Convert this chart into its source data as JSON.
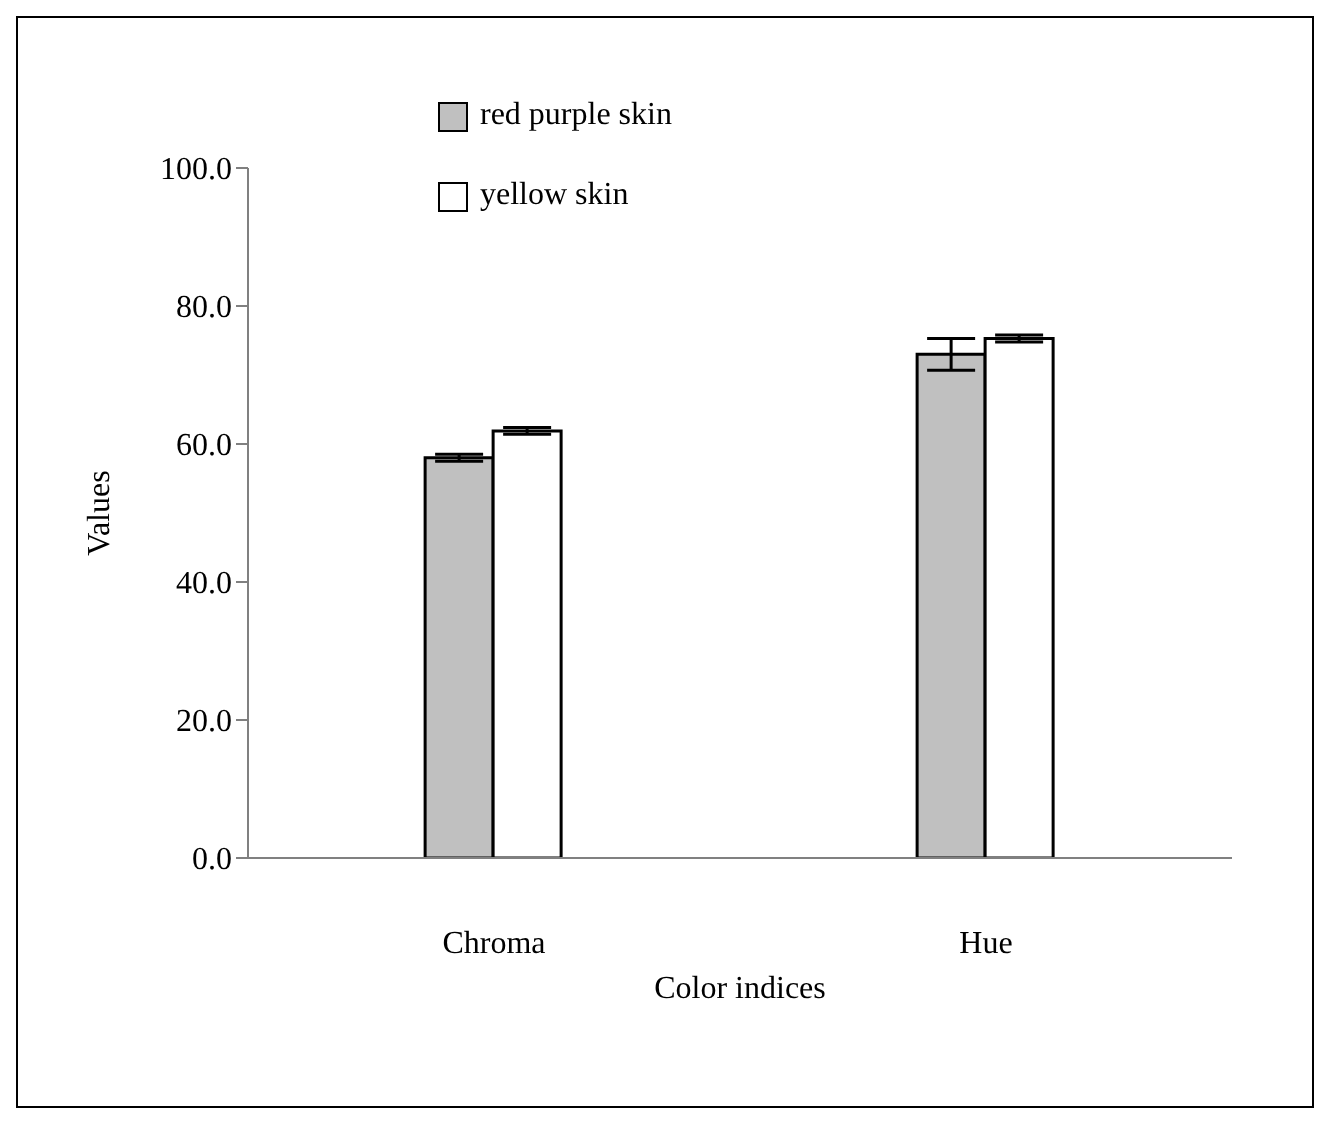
{
  "chart_data": {
    "type": "bar",
    "xlabel": "Color indices",
    "ylabel": "Values",
    "categories": [
      "Chroma",
      "Hue"
    ],
    "series": [
      {
        "name": "red purple skin",
        "color": "#c0c0c0",
        "values": [
          58.0,
          73.0
        ],
        "errors": [
          0.5,
          2.3
        ]
      },
      {
        "name": "yellow skin",
        "color": "#ffffff",
        "values": [
          61.9,
          75.3
        ],
        "errors": [
          0.5,
          0.5
        ]
      }
    ],
    "ylim": [
      0,
      100
    ],
    "yticks": [
      {
        "value": 0,
        "label": "0.0"
      },
      {
        "value": 20,
        "label": "20.0"
      },
      {
        "value": 40,
        "label": "40.0"
      },
      {
        "value": 60,
        "label": "60.0"
      },
      {
        "value": 80,
        "label": "80.0"
      },
      {
        "value": 100,
        "label": "100.0"
      }
    ],
    "legend": "top left"
  }
}
